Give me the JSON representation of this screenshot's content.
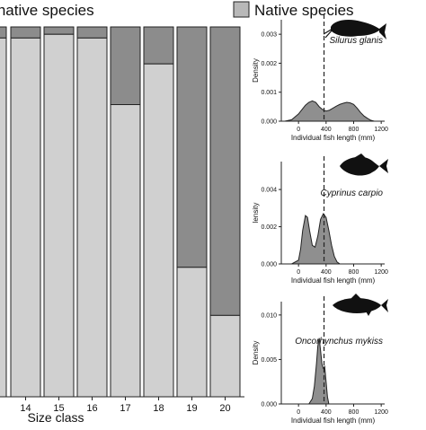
{
  "legend": {
    "items": [
      {
        "label": "Non-native species",
        "color": "#8c8c8c"
      },
      {
        "label": "Native species",
        "color": "#d0d0d0"
      }
    ]
  },
  "chart_data": [
    {
      "type": "bar",
      "stacked": true,
      "xlabel": "Size class",
      "ylim": [
        0,
        1
      ],
      "categories": [
        "14",
        "15",
        "16",
        "17",
        "18",
        "19",
        "20"
      ],
      "series": [
        {
          "name": "Non-native species",
          "color": "#8c8c8c",
          "values": [
            0.03,
            0.02,
            0.03,
            0.21,
            0.1,
            0.65,
            0.78
          ]
        },
        {
          "name": "Native species",
          "color": "#d0d0d0",
          "values": [
            0.97,
            0.98,
            0.97,
            0.79,
            0.9,
            0.35,
            0.22
          ]
        }
      ],
      "partial_left_bar": {
        "nonnative": 0.03
      }
    },
    {
      "type": "area",
      "species": "Silurus glanis",
      "ylabel": "Density",
      "xlabel": "Individual fish length (mm)",
      "x_ticks": [
        "0",
        "400",
        "800",
        "1200"
      ],
      "y_ticks": [
        "0.000",
        "0.001",
        "0.002",
        "0.003"
      ],
      "xlim": [
        -250,
        1250
      ],
      "ylim": [
        0,
        0.0035
      ],
      "threshold": 370,
      "x": [
        -200,
        -100,
        0,
        50,
        100,
        150,
        200,
        250,
        300,
        350,
        400,
        450,
        500,
        550,
        600,
        650,
        700,
        750,
        800,
        850,
        900,
        950,
        1000,
        1050,
        1100
      ],
      "y": [
        0,
        5e-05,
        0.00025,
        0.0004,
        0.00055,
        0.00065,
        0.0007,
        0.00065,
        0.0005,
        0.0004,
        0.00035,
        0.00038,
        0.00045,
        0.00052,
        0.00058,
        0.00062,
        0.00065,
        0.00063,
        0.00058,
        0.00045,
        0.0003,
        0.00018,
        0.0001,
        3e-05,
        0
      ]
    },
    {
      "type": "area",
      "species": "Cyprinus carpio",
      "ylabel": "lensity",
      "xlabel": "Individual fish length (mm)",
      "x_ticks": [
        "0",
        "400",
        "800",
        "1200"
      ],
      "y_ticks": [
        "0.000",
        "0.002",
        "0.004"
      ],
      "xlim": [
        -250,
        1250
      ],
      "ylim": [
        0,
        0.0055
      ],
      "threshold": 370,
      "x": [
        -100,
        0,
        30,
        60,
        100,
        130,
        160,
        200,
        240,
        280,
        320,
        360,
        400,
        440,
        480,
        520,
        560,
        600
      ],
      "y": [
        0,
        0.0002,
        0.0008,
        0.0018,
        0.0026,
        0.0025,
        0.0018,
        0.001,
        0.0009,
        0.0015,
        0.0024,
        0.0027,
        0.0025,
        0.0018,
        0.001,
        0.0004,
        0.0001,
        0
      ]
    },
    {
      "type": "area",
      "species": "Oncorhynchus mykiss",
      "ylabel": "Density",
      "xlabel": "Individual fish length (mm)",
      "x_ticks": [
        "0",
        "400",
        "800",
        "1200"
      ],
      "y_ticks": [
        "0.000",
        "0.005",
        "0.010"
      ],
      "xlim": [
        -250,
        1250
      ],
      "ylim": [
        0,
        0.0115
      ],
      "threshold": 370,
      "x": [
        150,
        200,
        230,
        260,
        280,
        300,
        320,
        340,
        360,
        380,
        400,
        420,
        440
      ],
      "y": [
        0,
        0.0006,
        0.002,
        0.0045,
        0.0065,
        0.0074,
        0.006,
        0.0045,
        0.004,
        0.0042,
        0.0025,
        0.0008,
        0
      ]
    }
  ]
}
